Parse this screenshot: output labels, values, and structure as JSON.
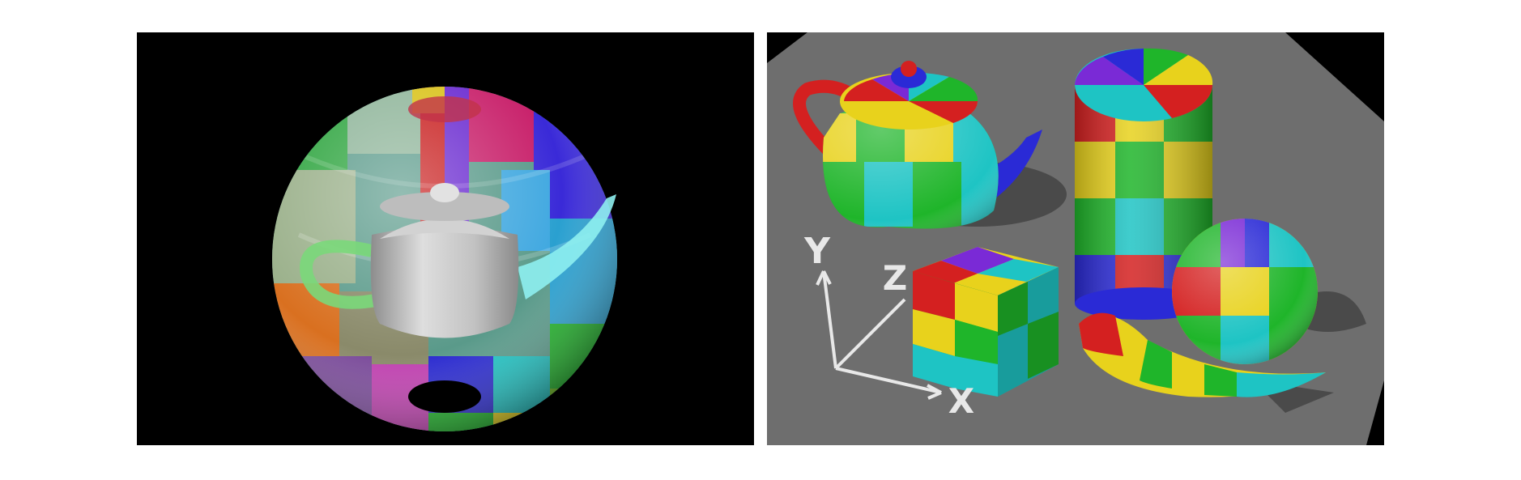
{
  "figure": {
    "left_render": {
      "subject": "sphere-enclosing-teapot",
      "background": "#000000",
      "patch_colors": [
        "#d42020",
        "#e8d21c",
        "#1fb52a",
        "#1ec4c4",
        "#2a2ad6",
        "#7a2ad6"
      ],
      "teapot_color": "#c8c8c8"
    },
    "right_render": {
      "subjects": [
        "teapot",
        "cylinder",
        "cube",
        "sphere",
        "banana-shape",
        "axes"
      ],
      "floor_color": "#6e6e6e",
      "background": "#000000",
      "axis_labels": {
        "x": "X",
        "y": "Y",
        "z": "Z"
      }
    }
  }
}
